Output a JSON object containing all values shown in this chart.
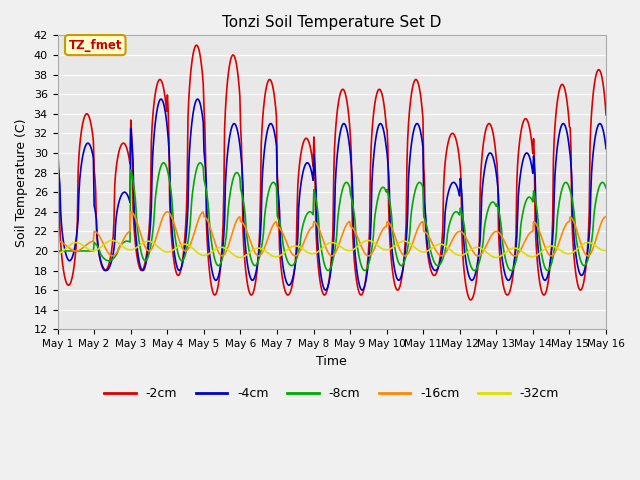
{
  "title": "Tonzi Soil Temperature Set D",
  "xlabel": "Time",
  "ylabel": "Soil Temperature (C)",
  "ylim": [
    12,
    42
  ],
  "yticks": [
    12,
    14,
    16,
    18,
    20,
    22,
    24,
    26,
    28,
    30,
    32,
    34,
    36,
    38,
    40,
    42
  ],
  "series_colors": [
    "#dd0000",
    "#0000cc",
    "#00aa00",
    "#ff8800",
    "#dddd00"
  ],
  "series_labels": [
    "-2cm",
    "-4cm",
    "-8cm",
    "-16cm",
    "-32cm"
  ],
  "n_days": 15,
  "annotation_text": "TZ_fmet",
  "annotation_bg": "#ffffcc",
  "annotation_border": "#cc9900",
  "annotation_color": "#cc0000",
  "fig_bg": "#f0f0f0",
  "plot_bg": "#e8e8e8",
  "grid_color": "#ffffff"
}
